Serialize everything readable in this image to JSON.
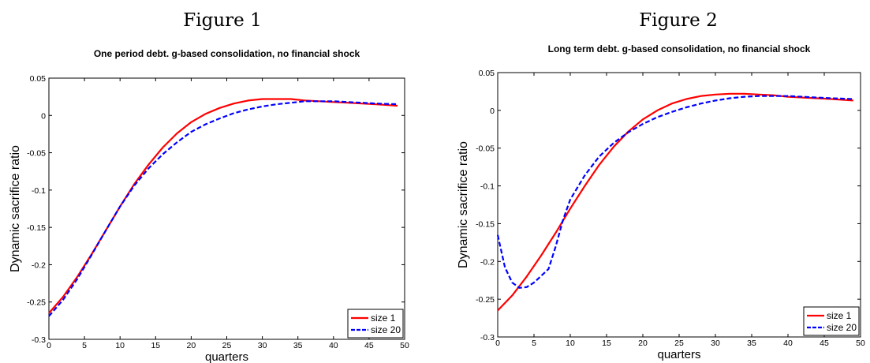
{
  "figures": [
    {
      "caption": "Figure 1"
    },
    {
      "caption": "Figure 2"
    }
  ],
  "chart_data": [
    {
      "type": "line",
      "title": "One period debt. g-based consolidation, no financial shock",
      "xlabel": "quarters",
      "ylabel": "Dynamic sacrifice ratio",
      "xlim": [
        0,
        50
      ],
      "ylim": [
        -0.3,
        0.05
      ],
      "xticks": [
        "0",
        "5",
        "10",
        "15",
        "20",
        "25",
        "30",
        "35",
        "40",
        "45",
        "50"
      ],
      "yticks": [
        "0.05",
        "0",
        "-0.05",
        "-0.1",
        "-0.15",
        "-0.2",
        "-0.25",
        "-0.3"
      ],
      "legend_position": "bottom-right",
      "series": [
        {
          "name": "size 1",
          "color": "#ff0000",
          "style": "solid",
          "x": [
            0,
            2,
            4,
            6,
            8,
            10,
            12,
            14,
            16,
            18,
            20,
            22,
            24,
            26,
            28,
            30,
            32,
            34,
            36,
            38,
            40,
            42,
            44,
            46,
            49
          ],
          "y": [
            -0.265,
            -0.243,
            -0.216,
            -0.186,
            -0.154,
            -0.122,
            -0.092,
            -0.066,
            -0.043,
            -0.024,
            -0.009,
            0.002,
            0.01,
            0.016,
            0.02,
            0.022,
            0.022,
            0.022,
            0.02,
            0.019,
            0.018,
            0.017,
            0.016,
            0.015,
            0.013
          ]
        },
        {
          "name": "size 20",
          "color": "#0000ff",
          "style": "dashed",
          "x": [
            0,
            2,
            4,
            6,
            8,
            10,
            12,
            14,
            16,
            18,
            20,
            22,
            24,
            26,
            28,
            30,
            32,
            34,
            36,
            38,
            40,
            42,
            44,
            46,
            49
          ],
          "y": [
            -0.269,
            -0.247,
            -0.219,
            -0.187,
            -0.154,
            -0.122,
            -0.094,
            -0.071,
            -0.052,
            -0.036,
            -0.022,
            -0.012,
            -0.004,
            0.003,
            0.008,
            0.012,
            0.015,
            0.017,
            0.019,
            0.019,
            0.019,
            0.018,
            0.017,
            0.016,
            0.015
          ]
        }
      ]
    },
    {
      "type": "line",
      "title": "Long term debt. g-based consolidation, no financial shock",
      "xlabel": "quarters",
      "ylabel": "Dynamic sacrifice ratio",
      "xlim": [
        0,
        50
      ],
      "ylim": [
        -0.3,
        0.05
      ],
      "xticks": [
        "0",
        "5",
        "10",
        "15",
        "20",
        "25",
        "30",
        "35",
        "40",
        "45",
        "50"
      ],
      "yticks": [
        "0.05",
        "0",
        "-0.05",
        "-0.1",
        "-0.15",
        "-0.2",
        "-0.25",
        "-0.3"
      ],
      "legend_position": "bottom-right",
      "series": [
        {
          "name": "size 1",
          "color": "#ff0000",
          "style": "solid",
          "x": [
            0,
            2,
            4,
            6,
            8,
            10,
            12,
            14,
            16,
            18,
            20,
            22,
            24,
            26,
            28,
            30,
            32,
            34,
            36,
            38,
            40,
            42,
            44,
            46,
            49
          ],
          "y": [
            -0.265,
            -0.245,
            -0.22,
            -0.192,
            -0.162,
            -0.13,
            -0.1,
            -0.072,
            -0.048,
            -0.028,
            -0.012,
            0.0,
            0.009,
            0.015,
            0.019,
            0.021,
            0.022,
            0.022,
            0.021,
            0.02,
            0.018,
            0.017,
            0.016,
            0.015,
            0.013
          ]
        },
        {
          "name": "size 20",
          "color": "#0000ff",
          "style": "dashed",
          "x": [
            0,
            1,
            2,
            3,
            4,
            5,
            6,
            7,
            8,
            9,
            10,
            12,
            14,
            16,
            18,
            20,
            22,
            24,
            26,
            28,
            30,
            32,
            34,
            36,
            38,
            40,
            42,
            44,
            46,
            49
          ],
          "y": [
            -0.165,
            -0.208,
            -0.228,
            -0.235,
            -0.234,
            -0.228,
            -0.219,
            -0.21,
            -0.18,
            -0.145,
            -0.118,
            -0.086,
            -0.061,
            -0.043,
            -0.029,
            -0.018,
            -0.009,
            -0.002,
            0.004,
            0.009,
            0.013,
            0.016,
            0.018,
            0.019,
            0.019,
            0.019,
            0.018,
            0.017,
            0.016,
            0.015
          ]
        }
      ]
    }
  ]
}
